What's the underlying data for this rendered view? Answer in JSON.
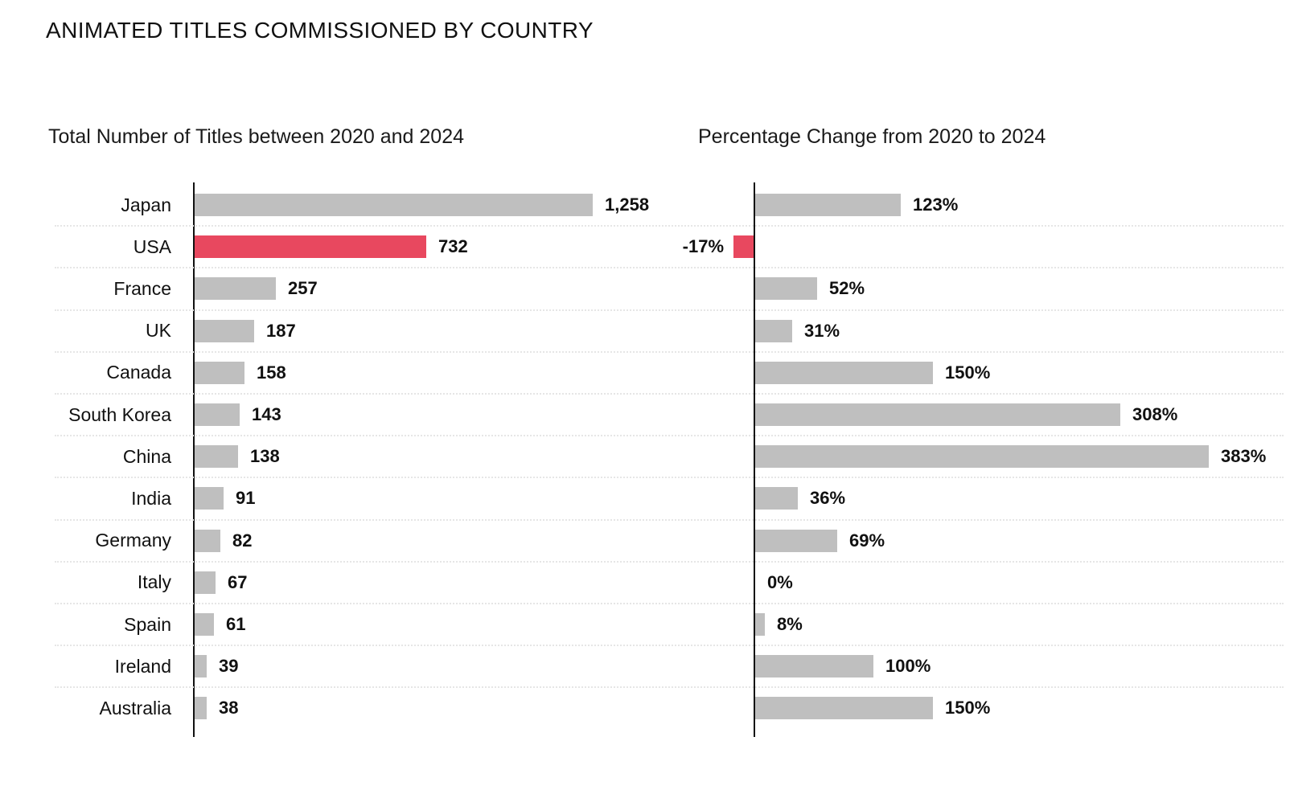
{
  "page": {
    "title": "ANIMATED TITLES COMMISSIONED BY COUNTRY"
  },
  "colors": {
    "bar_gray": "#bfbfbf",
    "bar_highlight": "#e8485f",
    "axis": "#111111",
    "separator": "#e6e6e6",
    "text": "#111111"
  },
  "chart_data": [
    {
      "type": "bar",
      "orientation": "horizontal",
      "title": "Total Number of Titles between 2020 and 2024",
      "categories": [
        "Japan",
        "USA",
        "France",
        "UK",
        "Canada",
        "South Korea",
        "China",
        "India",
        "Germany",
        "Italy",
        "Spain",
        "Ireland",
        "Australia"
      ],
      "values": [
        1258,
        732,
        257,
        187,
        158,
        143,
        138,
        91,
        82,
        67,
        61,
        39,
        38
      ],
      "labels": [
        "1,258",
        "732",
        "257",
        "187",
        "158",
        "143",
        "138",
        "91",
        "82",
        "67",
        "61",
        "39",
        "38"
      ],
      "highlight_category": "USA",
      "xlim": [
        0,
        1258
      ],
      "grid": "dotted-row-separators",
      "legend": "none"
    },
    {
      "type": "bar",
      "orientation": "horizontal",
      "title": "Percentage Change from 2020 to 2024",
      "categories": [
        "Japan",
        "USA",
        "France",
        "UK",
        "Canada",
        "South Korea",
        "China",
        "India",
        "Germany",
        "Italy",
        "Spain",
        "Ireland",
        "Australia"
      ],
      "values": [
        123,
        -17,
        52,
        31,
        150,
        308,
        383,
        36,
        69,
        0,
        8,
        100,
        150
      ],
      "labels": [
        "123%",
        "-17%",
        "52%",
        "31%",
        "150%",
        "308%",
        "383%",
        "36%",
        "69%",
        "0%",
        "8%",
        "100%",
        "150%"
      ],
      "highlight_category": "USA",
      "xlim": [
        -17,
        383
      ],
      "grid": "dotted-row-separators",
      "legend": "none"
    }
  ]
}
